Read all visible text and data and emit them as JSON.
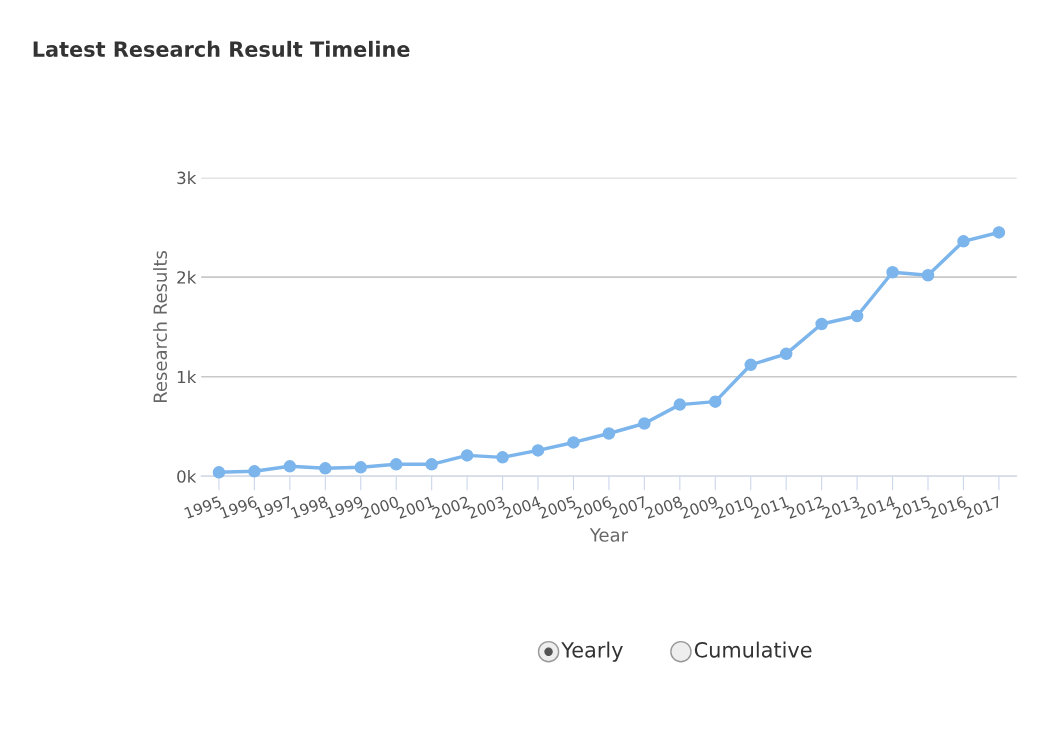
{
  "chart_data": {
    "type": "line",
    "title": "Latest Research Result Timeline",
    "xlabel": "Year",
    "ylabel": "Research Results",
    "categories": [
      "1995",
      "1996",
      "1997",
      "1998",
      "1999",
      "2000",
      "2001",
      "2002",
      "2003",
      "2004",
      "2005",
      "2006",
      "2007",
      "2008",
      "2009",
      "2010",
      "2011",
      "2012",
      "2013",
      "2014",
      "2015",
      "2016",
      "2017"
    ],
    "series": [
      {
        "color": "#7cb5ec",
        "values": [
          40,
          50,
          100,
          80,
          90,
          120,
          120,
          210,
          190,
          260,
          340,
          430,
          530,
          720,
          750,
          1120,
          1230,
          1530,
          1610,
          2050,
          2020,
          2360,
          2450
        ]
      }
    ],
    "ylim": [
      0,
      3000
    ],
    "yticks": [
      {
        "value": 0,
        "label": "0k"
      },
      {
        "value": 1000,
        "label": "1k"
      },
      {
        "value": 2000,
        "label": "2k"
      },
      {
        "value": 3000,
        "label": "3k"
      }
    ],
    "grid": "y",
    "marker": "circle",
    "line_style": "solid",
    "annotations": [
      "Yearly",
      "Cumulative"
    ]
  }
}
